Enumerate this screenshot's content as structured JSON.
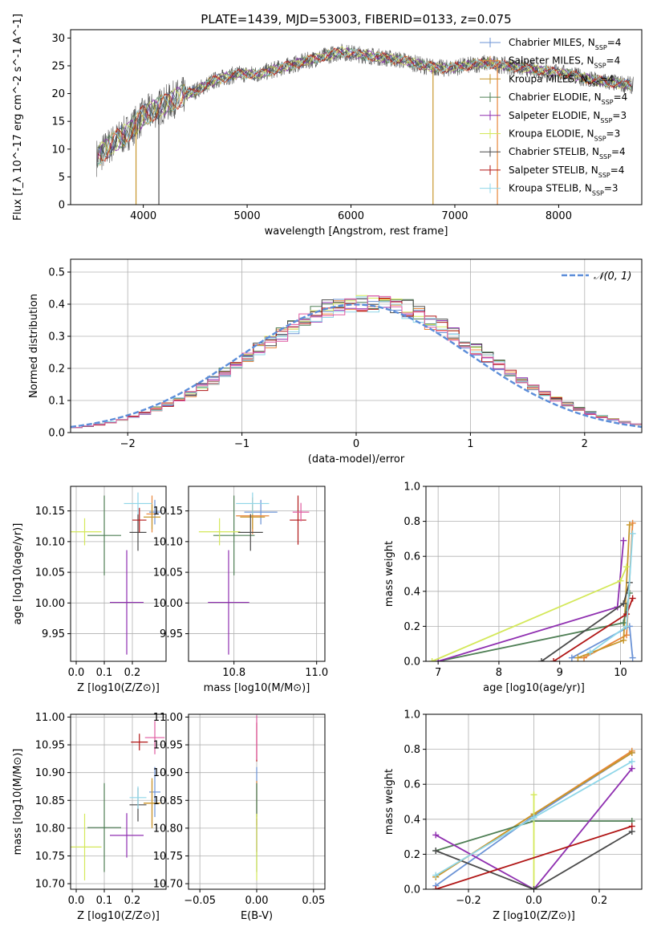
{
  "figure": {
    "title": "PLATE=1439, MJD=53003, FIBERID=0133, z=0.075"
  },
  "colors": {
    "Chabrier MILES": "#6b93d6",
    "Salpeter MILES": "#e8863a",
    "Kroupa MILES": "#c7962a",
    "Chabrier ELODIE": "#4f7f55",
    "Salpeter ELODIE": "#8f2fb0",
    "Kroupa ELODIE": "#d4e85a",
    "Chabrier STELIB": "#4a4a4a",
    "Salpeter STELIB": "#b01515",
    "Kroupa STELIB": "#8fd6e8",
    "extra pink": "#e05aa0",
    "normal curve": "#5b8dd9"
  },
  "chart_data": [
    {
      "id": "spectrum",
      "type": "line",
      "xlabel": "wavelength [Angstrom, rest frame]",
      "ylabel": "Flux [f_λ 10^-17 erg cm^-2 s^-1 A^-1]",
      "xlim": [
        3300,
        8800
      ],
      "ylim": [
        0,
        31.5
      ],
      "xticks": [
        4000,
        5000,
        6000,
        7000,
        8000
      ],
      "yticks": [
        0,
        5,
        10,
        15,
        20,
        25,
        30
      ],
      "grid": false,
      "legend_position": "upper-right",
      "legend": [
        {
          "model": "Chabrier MILES",
          "nssp": "4"
        },
        {
          "model": "Salpeter MILES",
          "nssp": "4"
        },
        {
          "model": "Kroupa MILES",
          "nssp": "4"
        },
        {
          "model": "Chabrier ELODIE",
          "nssp": "4"
        },
        {
          "model": "Salpeter ELODIE",
          "nssp": "3"
        },
        {
          "model": "Kroupa ELODIE",
          "nssp": "3"
        },
        {
          "model": "Chabrier STELIB",
          "nssp": "4"
        },
        {
          "model": "Salpeter STELIB",
          "nssp": "4"
        },
        {
          "model": "Kroupa STELIB",
          "nssp": "3"
        }
      ],
      "continuum": {
        "x": [
          3550,
          3700,
          3850,
          4000,
          4150,
          4300,
          4500,
          4700,
          4900,
          5100,
          5300,
          5500,
          5700,
          5900,
          6100,
          6300,
          6500,
          6700,
          6900,
          7100,
          7300,
          7500,
          7700,
          7900,
          8100,
          8300,
          8500,
          8700
        ],
        "y": [
          8.5,
          11,
          13,
          16,
          17.5,
          19,
          20.5,
          22.5,
          23.5,
          23.5,
          24.5,
          25.5,
          26.5,
          27.5,
          27,
          26.5,
          26,
          25,
          24.5,
          25,
          25.5,
          25,
          24.5,
          24,
          23.5,
          22.5,
          22,
          21.5
        ]
      },
      "spikes": [
        {
          "x": 3930,
          "ymin": 0,
          "color": "Kroupa MILES"
        },
        {
          "x": 4150,
          "ymin": 0,
          "color": "Chabrier STELIB"
        },
        {
          "x": 6790,
          "ymin": 0,
          "color": "Kroupa MILES"
        },
        {
          "x": 7410,
          "ymin": 0,
          "color": "Salpeter MILES"
        }
      ]
    },
    {
      "id": "residuals",
      "type": "bar",
      "xlabel": "(data-model)/error",
      "ylabel": "Normed distribution",
      "xlim": [
        -2.5,
        2.5
      ],
      "ylim": [
        0,
        0.54
      ],
      "xticks": [
        -2,
        -1,
        0,
        1,
        2
      ],
      "yticks": [
        0.0,
        0.1,
        0.2,
        0.3,
        0.4,
        0.5
      ],
      "grid": true,
      "legend_position": "upper-right",
      "normal_label": "𝒩(0, 1)",
      "bin_edges_start": -2.5,
      "bin_width": 0.1
    },
    {
      "id": "age_vs_Z",
      "type": "scatter",
      "xlabel": "Z [log10(Z/Z⊙)]",
      "ylabel": "age  [log10(age/yr)]",
      "xlim": [
        -0.02,
        0.32
      ],
      "ylim": [
        9.905,
        10.19
      ],
      "xticks": [
        0.0,
        0.1,
        0.2
      ],
      "yticks": [
        9.95,
        10.0,
        10.05,
        10.1,
        10.15
      ],
      "grid": true,
      "points": [
        {
          "model": "Chabrier MILES",
          "x": 0.28,
          "xerr": 0.02,
          "y": 10.148,
          "yerr": 0.02
        },
        {
          "model": "Salpeter MILES",
          "x": 0.27,
          "xerr": 0.02,
          "y": 10.145,
          "yerr": 0.03
        },
        {
          "model": "Kroupa MILES",
          "x": 0.27,
          "xerr": 0.03,
          "y": 10.14,
          "yerr": 0.02
        },
        {
          "model": "Chabrier ELODIE",
          "x": 0.1,
          "xerr": 0.06,
          "y": 10.11,
          "yerr": 0.065
        },
        {
          "model": "Salpeter ELODIE",
          "x": 0.18,
          "xerr": 0.06,
          "y": 10.001,
          "yerr": 0.085
        },
        {
          "model": "Kroupa ELODIE",
          "x": 0.03,
          "xerr": 0.06,
          "y": 10.116,
          "yerr": 0.022
        },
        {
          "model": "Chabrier STELIB",
          "x": 0.22,
          "xerr": 0.03,
          "y": 10.115,
          "yerr": 0.03
        },
        {
          "model": "Salpeter STELIB",
          "x": 0.225,
          "xerr": 0.025,
          "y": 10.135,
          "yerr": 0.02
        },
        {
          "model": "Kroupa STELIB",
          "x": 0.22,
          "xerr": 0.05,
          "y": 10.162,
          "yerr": 0.018
        }
      ]
    },
    {
      "id": "age_vs_mass",
      "type": "scatter",
      "xlabel": "mass [log10(M/M⊙)]",
      "ylabel": "",
      "xlim": [
        10.69,
        11.02
      ],
      "ylim": [
        9.905,
        10.19
      ],
      "xticks": [
        10.8,
        11.0
      ],
      "yticks": [
        9.95,
        10.0,
        10.05,
        10.1,
        10.15
      ],
      "grid": true,
      "points": [
        {
          "model": "Chabrier MILES",
          "x": 10.865,
          "xerr": 0.04,
          "y": 10.148,
          "yerr": 0.02
        },
        {
          "model": "Salpeter MILES",
          "x": 10.845,
          "xerr": 0.04,
          "y": 10.142,
          "yerr": 0.03
        },
        {
          "model": "Kroupa MILES",
          "x": 10.845,
          "xerr": 0.03,
          "y": 10.14,
          "yerr": 0.02
        },
        {
          "model": "Chabrier ELODIE",
          "x": 10.8,
          "xerr": 0.05,
          "y": 10.11,
          "yerr": 0.065
        },
        {
          "model": "Salpeter ELODIE",
          "x": 10.787,
          "xerr": 0.05,
          "y": 10.001,
          "yerr": 0.085
        },
        {
          "model": "Kroupa ELODIE",
          "x": 10.765,
          "xerr": 0.05,
          "y": 10.116,
          "yerr": 0.022
        },
        {
          "model": "Chabrier STELIB",
          "x": 10.84,
          "xerr": 0.03,
          "y": 10.115,
          "yerr": 0.03
        },
        {
          "model": "Salpeter STELIB",
          "x": 10.955,
          "xerr": 0.02,
          "y": 10.135,
          "yerr": 0.04
        },
        {
          "model": "Kroupa STELIB",
          "x": 10.845,
          "xerr": 0.04,
          "y": 10.162,
          "yerr": 0.018
        },
        {
          "model": "extra pink",
          "x": 10.962,
          "xerr": 0.02,
          "y": 10.148,
          "yerr": 0.015
        }
      ]
    },
    {
      "id": "weight_vs_age",
      "type": "line",
      "xlabel": "age  [log10(age/yr)]",
      "ylabel": "mass weight",
      "xlim": [
        6.8,
        10.35
      ],
      "ylim": [
        0,
        1.0
      ],
      "xticks": [
        7,
        8,
        9,
        10
      ],
      "yticks": [
        0.0,
        0.2,
        0.4,
        0.6,
        0.8,
        1.0
      ],
      "grid": true,
      "series": [
        {
          "model": "Chabrier MILES",
          "x": [
            9.2,
            10.15,
            10.2
          ],
          "y": [
            0.02,
            0.2,
            0.02
          ]
        },
        {
          "model": "Salpeter MILES",
          "x": [
            9.4,
            10.1,
            10.2
          ],
          "y": [
            0.02,
            0.15,
            0.79
          ]
        },
        {
          "model": "Kroupa MILES",
          "x": [
            9.3,
            10.05,
            10.15
          ],
          "y": [
            0.02,
            0.12,
            0.78
          ]
        },
        {
          "model": "Chabrier ELODIE",
          "x": [
            7.0,
            10.05,
            10.15
          ],
          "y": [
            0.0,
            0.22,
            0.39
          ]
        },
        {
          "model": "Salpeter ELODIE",
          "x": [
            7.0,
            9.95,
            10.05
          ],
          "y": [
            0.0,
            0.31,
            0.69
          ]
        },
        {
          "model": "Kroupa ELODIE",
          "x": [
            6.9,
            10.0,
            10.1
          ],
          "y": [
            0.0,
            0.46,
            0.54
          ]
        },
        {
          "model": "Chabrier STELIB",
          "x": [
            8.7,
            10.05,
            10.15
          ],
          "y": [
            0.0,
            0.33,
            0.45
          ]
        },
        {
          "model": "Salpeter STELIB",
          "x": [
            8.9,
            10.1,
            10.2
          ],
          "y": [
            0.0,
            0.27,
            0.36
          ]
        },
        {
          "model": "Kroupa STELIB",
          "x": [
            9.5,
            10.1,
            10.2
          ],
          "y": [
            0.05,
            0.2,
            0.73
          ]
        }
      ]
    },
    {
      "id": "mass_vs_Z",
      "type": "scatter",
      "xlabel": "Z [log10(Z/Z⊙)]",
      "ylabel": "mass [log10(M/M⊙)]",
      "xlim": [
        -0.02,
        0.32
      ],
      "ylim": [
        10.69,
        11.005
      ],
      "xticks": [
        0.0,
        0.1,
        0.2
      ],
      "yticks": [
        10.7,
        10.75,
        10.8,
        10.85,
        10.9,
        10.95,
        11.0
      ],
      "grid": true,
      "points": [
        {
          "model": "Chabrier MILES",
          "x": 0.28,
          "xerr": 0.02,
          "y": 10.865,
          "yerr": 0.045
        },
        {
          "model": "Salpeter MILES",
          "x": 0.27,
          "xerr": 0.03,
          "y": 10.845,
          "yerr": 0.04
        },
        {
          "model": "Kroupa MILES",
          "x": 0.27,
          "xerr": 0.03,
          "y": 10.845,
          "yerr": 0.045
        },
        {
          "model": "Chabrier ELODIE",
          "x": 0.1,
          "xerr": 0.06,
          "y": 10.801,
          "yerr": 0.08
        },
        {
          "model": "Salpeter ELODIE",
          "x": 0.18,
          "xerr": 0.06,
          "y": 10.787,
          "yerr": 0.04
        },
        {
          "model": "Kroupa ELODIE",
          "x": 0.03,
          "xerr": 0.06,
          "y": 10.766,
          "yerr": 0.06
        },
        {
          "model": "Chabrier STELIB",
          "x": 0.22,
          "xerr": 0.03,
          "y": 10.842,
          "yerr": 0.03
        },
        {
          "model": "Salpeter STELIB",
          "x": 0.225,
          "xerr": 0.03,
          "y": 10.955,
          "yerr": 0.015
        },
        {
          "model": "Kroupa STELIB",
          "x": 0.22,
          "xerr": 0.03,
          "y": 10.855,
          "yerr": 0.02
        },
        {
          "model": "extra pink",
          "x": 0.28,
          "xerr": 0.035,
          "y": 10.963,
          "yerr": 0.03
        }
      ]
    },
    {
      "id": "mass_vs_ebv",
      "type": "scatter",
      "xlabel": "E(B-V)",
      "ylabel": "",
      "xlim": [
        -0.06,
        0.06
      ],
      "ylim": [
        10.69,
        11.005
      ],
      "xticks": [
        -0.05,
        0.0,
        0.05
      ],
      "yticks": [
        10.7,
        10.75,
        10.8,
        10.85,
        10.9,
        10.95,
        11.0
      ],
      "grid": true,
      "points": [
        {
          "model": "Chabrier MILES",
          "x": 0.0,
          "xerr": 0.0,
          "y": 10.865,
          "yerr": 0.045
        },
        {
          "model": "Salpeter MILES",
          "x": 0.0,
          "xerr": 0.0,
          "y": 10.845,
          "yerr": 0.04
        },
        {
          "model": "Chabrier ELODIE",
          "x": 0.0,
          "xerr": 0.0,
          "y": 10.801,
          "yerr": 0.08
        },
        {
          "model": "Salpeter ELODIE",
          "x": 0.0,
          "xerr": 0.0,
          "y": 10.787,
          "yerr": 0.03
        },
        {
          "model": "Kroupa ELODIE",
          "x": 0.0,
          "xerr": 0.0,
          "y": 10.766,
          "yerr": 0.06
        },
        {
          "model": "Salpeter STELIB",
          "x": 0.0,
          "xerr": 0.0,
          "y": 10.955,
          "yerr": 0.035
        },
        {
          "model": "extra pink",
          "x": 0.0,
          "xerr": 0.0,
          "y": 10.963,
          "yerr": 0.04
        }
      ]
    },
    {
      "id": "weight_vs_Z",
      "type": "line",
      "xlabel": "Z [log10(Z/Z⊙)]",
      "ylabel": "mass weight",
      "xlim": [
        -0.33,
        0.33
      ],
      "ylim": [
        0,
        1.0
      ],
      "xticks": [
        -0.2,
        0.0,
        0.2
      ],
      "yticks": [
        0.0,
        0.2,
        0.4,
        0.6,
        0.8,
        1.0
      ],
      "grid": true,
      "series": [
        {
          "model": "Chabrier MILES",
          "x": [
            -0.3,
            0.0,
            0.3
          ],
          "y": [
            0.02,
            0.42,
            0.78
          ]
        },
        {
          "model": "Salpeter MILES",
          "x": [
            -0.3,
            0.0,
            0.3
          ],
          "y": [
            0.07,
            0.43,
            0.79
          ]
        },
        {
          "model": "Kroupa MILES",
          "x": [
            -0.3,
            0.0,
            0.3
          ],
          "y": [
            0.07,
            0.43,
            0.78
          ]
        },
        {
          "model": "Chabrier ELODIE",
          "x": [
            -0.3,
            0.0,
            0.3
          ],
          "y": [
            0.22,
            0.39,
            0.39
          ]
        },
        {
          "model": "Salpeter ELODIE",
          "x": [
            -0.3,
            0.0,
            0.3
          ],
          "y": [
            0.31,
            0.0,
            0.69
          ]
        },
        {
          "model": "Kroupa ELODIE",
          "x": [
            0.0,
            0.0
          ],
          "y": [
            0.0,
            0.54
          ]
        },
        {
          "model": "Chabrier STELIB",
          "x": [
            -0.3,
            0.0,
            0.3
          ],
          "y": [
            0.22,
            0.0,
            0.33
          ]
        },
        {
          "model": "Salpeter STELIB",
          "x": [
            -0.3,
            0.3
          ],
          "y": [
            0.0,
            0.36
          ]
        },
        {
          "model": "Kroupa STELIB",
          "x": [
            -0.3,
            0.0,
            0.3
          ],
          "y": [
            0.08,
            0.41,
            0.73
          ]
        }
      ]
    }
  ]
}
